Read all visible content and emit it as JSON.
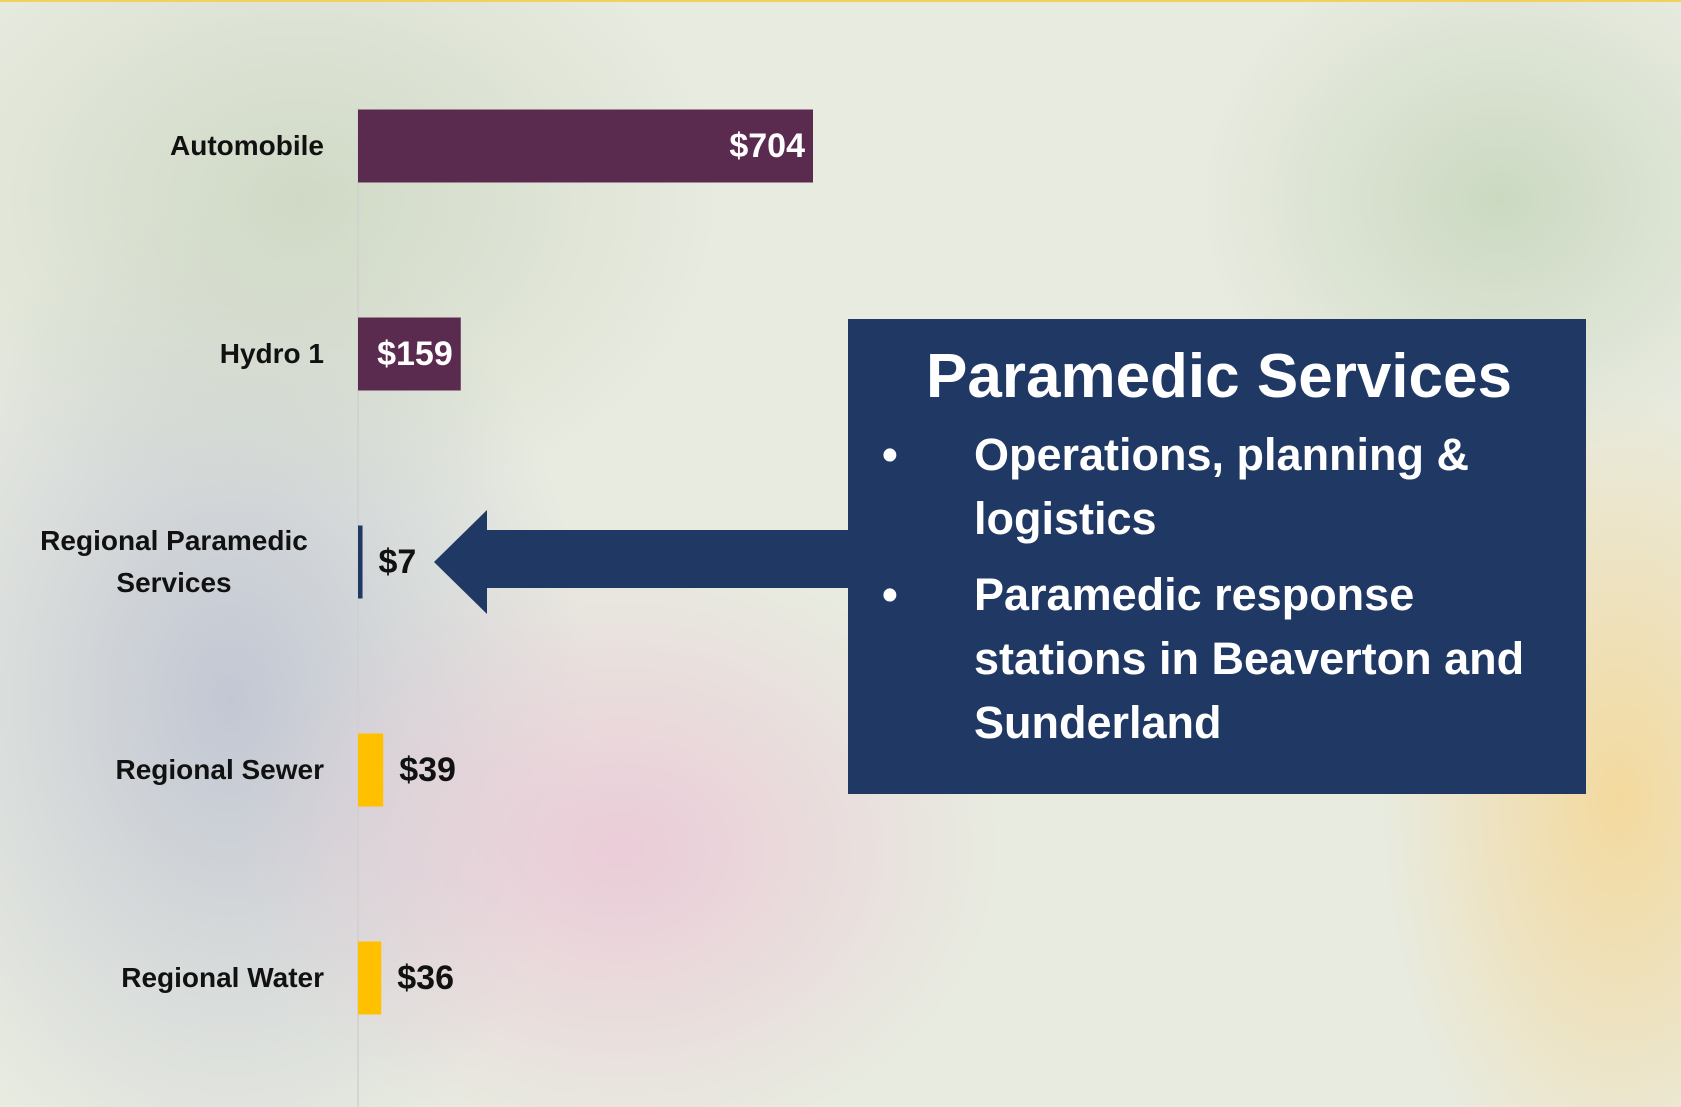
{
  "chart_data": {
    "type": "bar",
    "orientation": "horizontal",
    "categories": [
      "Automobile",
      "Hydro 1",
      "Regional Paramedic Services",
      "Regional Sewer",
      "Regional Water"
    ],
    "values": [
      704,
      159,
      7,
      39,
      36
    ],
    "value_labels": [
      "$704",
      "$159",
      "$7",
      "$39",
      "$36"
    ],
    "colors": [
      "#5b2a4f",
      "#5b2a4f",
      "#1f3864",
      "#ffc000",
      "#ffc000"
    ],
    "annotation": {
      "title": "Paramedic Services",
      "bullets": [
        "Operations, planning & logistics",
        "Paramedic response stations in Beaverton and Sunderland"
      ]
    }
  }
}
